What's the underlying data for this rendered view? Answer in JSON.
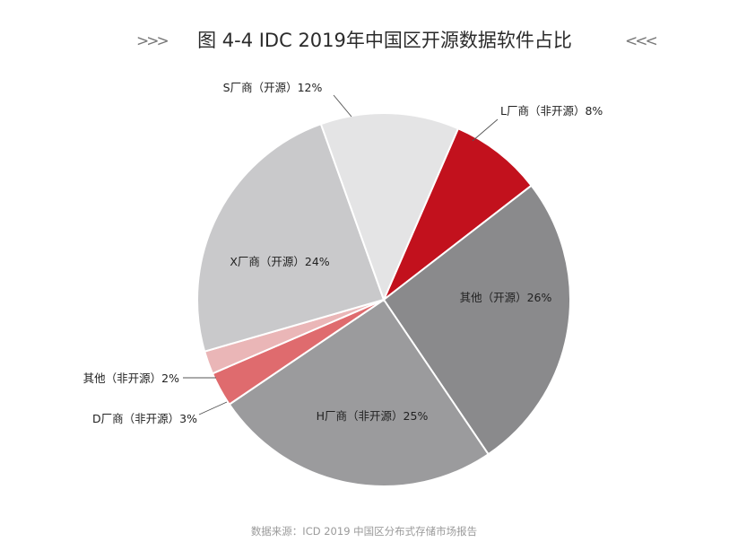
{
  "decorations": {
    "left_arrows": ">>>",
    "right_arrows": "<<<"
  },
  "chart_data": {
    "type": "pie",
    "title": "图 4-4 IDC 2019年中国区开源数据软件占比",
    "source": "数据来源：ICD 2019 中国区分布式存储市场报告",
    "slices": [
      {
        "label": "L厂商（非开源）8%",
        "value": 8,
        "color": "#c2111d"
      },
      {
        "label": "其他（开源）26%",
        "value": 26,
        "color": "#8a8a8c"
      },
      {
        "label": "H厂商（非开源）25%",
        "value": 25,
        "color": "#9b9b9d"
      },
      {
        "label": "D厂商（非开源）3%",
        "value": 3,
        "color": "#df6b6e"
      },
      {
        "label": "其他（非开源）2%",
        "value": 2,
        "color": "#eab6b7"
      },
      {
        "label": "X厂商（开源）24%",
        "value": 24,
        "color": "#c9c9cb"
      },
      {
        "label": "S厂商（开源）12%",
        "value": 12,
        "color": "#e4e4e5"
      }
    ]
  }
}
